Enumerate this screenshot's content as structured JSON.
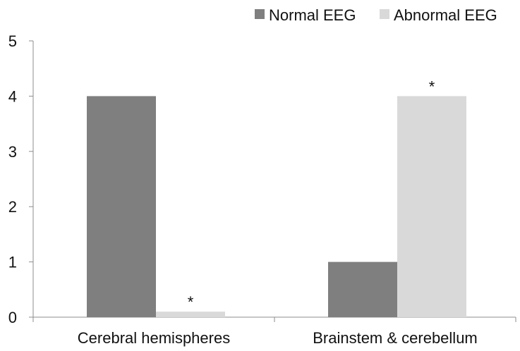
{
  "chart_data": {
    "type": "bar",
    "categories": [
      "Cerebral hemispheres",
      "Brainstem & cerebellum"
    ],
    "series": [
      {
        "name": "Normal EEG",
        "values": [
          4,
          1
        ],
        "color": "#7f7f7f"
      },
      {
        "name": "Abnormal EEG",
        "values": [
          0.1,
          4
        ],
        "color": "#d9d9d9"
      }
    ],
    "ylim": [
      0,
      5
    ],
    "yticks": [
      "0",
      "1",
      "2",
      "3",
      "4",
      "5"
    ],
    "annotations": [
      {
        "text": "*",
        "category": 0,
        "series": 1,
        "value": 0.1
      },
      {
        "text": "*",
        "category": 1,
        "series": 1,
        "value": 4
      }
    ],
    "legend_position": "top-right",
    "grid": false
  }
}
